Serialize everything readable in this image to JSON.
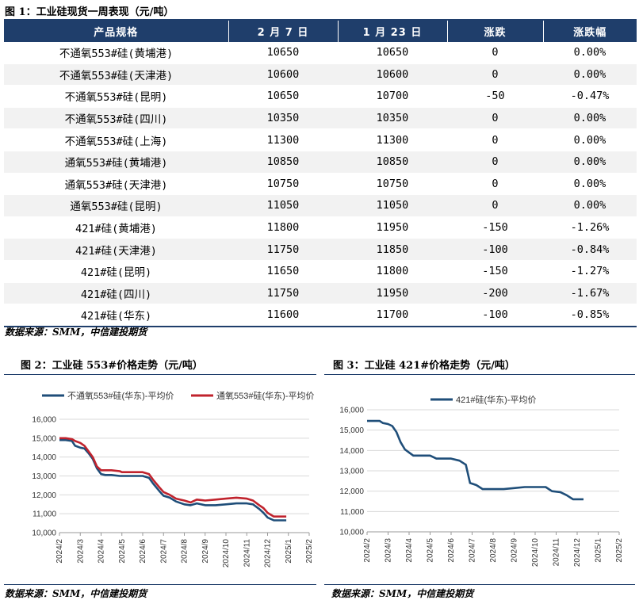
{
  "fig1": {
    "title": "图 1：工业硅现货一周表现（元/吨）",
    "source": "数据来源：SMM，中信建投期货"
  },
  "fig2": {
    "title": "图 2：工业硅 553#价格走势（元/吨）",
    "source": "数据来源：SMM，中信建投期货"
  },
  "fig3": {
    "title": "图 3：工业硅 421#价格走势（元/吨）",
    "source": "数据来源：SMM，中信建投期货"
  },
  "colors": {
    "header_bg": "#1f3e6b",
    "series_blue": "#1f4e79",
    "series_red": "#c0232d"
  },
  "chart_data": [
    {
      "type": "table",
      "title": "图 1：工业硅现货一周表现（元/吨）",
      "columns": [
        "产品规格",
        "2 月 7 日",
        "1 月 23 日",
        "涨跌",
        "涨跌幅"
      ],
      "rows": [
        [
          "不通氧553#硅(黄埔港)",
          "10650",
          "10650",
          "0",
          "0.00%"
        ],
        [
          "不通氧553#硅(天津港)",
          "10600",
          "10600",
          "0",
          "0.00%"
        ],
        [
          "不通氧553#硅(昆明)",
          "10650",
          "10700",
          "-50",
          "-0.47%"
        ],
        [
          "不通氧553#硅(四川)",
          "10350",
          "10350",
          "0",
          "0.00%"
        ],
        [
          "不通氧553#硅(上海)",
          "11300",
          "11300",
          "0",
          "0.00%"
        ],
        [
          "通氧553#硅(黄埔港)",
          "10850",
          "10850",
          "0",
          "0.00%"
        ],
        [
          "通氧553#硅(天津港)",
          "10750",
          "10750",
          "0",
          "0.00%"
        ],
        [
          "通氧553#硅(昆明)",
          "11050",
          "11050",
          "0",
          "0.00%"
        ],
        [
          "421#硅(黄埔港)",
          "11800",
          "11950",
          "-150",
          "-1.26%"
        ],
        [
          "421#硅(天津港)",
          "11750",
          "11850",
          "-100",
          "-0.84%"
        ],
        [
          "421#硅(昆明)",
          "11650",
          "11800",
          "-150",
          "-1.27%"
        ],
        [
          "421#硅(四川)",
          "11750",
          "11950",
          "-200",
          "-1.67%"
        ],
        [
          "421#硅(华东)",
          "11600",
          "11700",
          "-100",
          "-0.85%"
        ]
      ]
    },
    {
      "type": "line",
      "title": "图 2：工业硅 553#价格走势（元/吨）",
      "x_tick_labels": [
        "2024/2",
        "2024/3",
        "2024/4",
        "2024/5",
        "2024/6",
        "2024/7",
        "2024/8",
        "2024/9",
        "2024/10",
        "2024/11",
        "2024/12",
        "2025/1",
        "2025/2"
      ],
      "ylim": [
        10000,
        16000
      ],
      "y_tick_labels": [
        "10,000",
        "11,000",
        "12,000",
        "13,000",
        "14,000",
        "15,000",
        "16,000"
      ],
      "legend_position": "top",
      "series": [
        {
          "name": "不通氧553#硅(华东)-平均价",
          "points": [
            [
              2.0,
              14900
            ],
            [
              2.3,
              14900
            ],
            [
              2.6,
              14850
            ],
            [
              2.75,
              14600
            ],
            [
              3.0,
              14500
            ],
            [
              3.2,
              14450
            ],
            [
              3.4,
              14200
            ],
            [
              3.6,
              13900
            ],
            [
              3.8,
              13400
            ],
            [
              4.0,
              13100
            ],
            [
              4.2,
              13050
            ],
            [
              4.5,
              13050
            ],
            [
              4.9,
              13000
            ],
            [
              5.0,
              13000
            ],
            [
              5.5,
              13000
            ],
            [
              6.0,
              13000
            ],
            [
              6.3,
              12900
            ],
            [
              6.5,
              12600
            ],
            [
              6.8,
              12200
            ],
            [
              7.0,
              11950
            ],
            [
              7.3,
              11850
            ],
            [
              7.6,
              11650
            ],
            [
              8.0,
              11500
            ],
            [
              8.3,
              11450
            ],
            [
              8.6,
              11550
            ],
            [
              9.0,
              11450
            ],
            [
              9.5,
              11450
            ],
            [
              10.0,
              11500
            ],
            [
              10.5,
              11550
            ],
            [
              11.0,
              11550
            ],
            [
              11.3,
              11500
            ],
            [
              11.6,
              11250
            ],
            [
              11.8,
              11050
            ],
            [
              12.0,
              10800
            ],
            [
              12.3,
              10650
            ],
            [
              12.9,
              10650
            ]
          ]
        },
        {
          "name": "通氧553#硅(华东)-平均价",
          "points": [
            [
              2.0,
              15000
            ],
            [
              2.3,
              15000
            ],
            [
              2.6,
              14950
            ],
            [
              2.75,
              14850
            ],
            [
              3.0,
              14750
            ],
            [
              3.2,
              14600
            ],
            [
              3.4,
              14300
            ],
            [
              3.6,
              14000
            ],
            [
              3.8,
              13500
            ],
            [
              4.0,
              13300
            ],
            [
              4.2,
              13300
            ],
            [
              4.5,
              13300
            ],
            [
              4.9,
              13250
            ],
            [
              5.0,
              13200
            ],
            [
              5.5,
              13200
            ],
            [
              6.0,
              13200
            ],
            [
              6.3,
              13100
            ],
            [
              6.5,
              12800
            ],
            [
              6.8,
              12400
            ],
            [
              7.0,
              12150
            ],
            [
              7.3,
              12000
            ],
            [
              7.6,
              11800
            ],
            [
              8.0,
              11700
            ],
            [
              8.3,
              11600
            ],
            [
              8.6,
              11750
            ],
            [
              9.0,
              11700
            ],
            [
              9.5,
              11750
            ],
            [
              10.0,
              11800
            ],
            [
              10.5,
              11850
            ],
            [
              11.0,
              11800
            ],
            [
              11.3,
              11700
            ],
            [
              11.6,
              11450
            ],
            [
              11.8,
              11300
            ],
            [
              12.0,
              11050
            ],
            [
              12.3,
              10850
            ],
            [
              12.9,
              10850
            ]
          ]
        }
      ]
    },
    {
      "type": "line",
      "title": "图 3：工业硅 421#价格走势（元/吨）",
      "x_tick_labels": [
        "2024/2",
        "2024/3",
        "2024/4",
        "2024/5",
        "2024/6",
        "2024/7",
        "2024/8",
        "2024/9",
        "2024/10",
        "2024/11",
        "2024/12",
        "2025/1",
        "2025/2"
      ],
      "ylim": [
        10000,
        16000
      ],
      "y_tick_labels": [
        "10,000",
        "11,000",
        "12,000",
        "13,000",
        "14,000",
        "15,000",
        "16,000"
      ],
      "legend_position": "top",
      "series": [
        {
          "name": "421#硅(华东)-平均价",
          "points": [
            [
              2.0,
              15450
            ],
            [
              2.6,
              15450
            ],
            [
              2.75,
              15350
            ],
            [
              3.0,
              15300
            ],
            [
              3.2,
              15200
            ],
            [
              3.4,
              14900
            ],
            [
              3.6,
              14400
            ],
            [
              3.8,
              14050
            ],
            [
              4.0,
              13900
            ],
            [
              4.2,
              13750
            ],
            [
              4.5,
              13750
            ],
            [
              5.0,
              13750
            ],
            [
              5.3,
              13600
            ],
            [
              5.6,
              13600
            ],
            [
              6.0,
              13600
            ],
            [
              6.4,
              13500
            ],
            [
              6.7,
              13300
            ],
            [
              6.9,
              12400
            ],
            [
              7.2,
              12300
            ],
            [
              7.5,
              12100
            ],
            [
              8.0,
              12100
            ],
            [
              8.5,
              12100
            ],
            [
              9.0,
              12150
            ],
            [
              9.5,
              12200
            ],
            [
              10.0,
              12200
            ],
            [
              10.5,
              12200
            ],
            [
              10.8,
              12000
            ],
            [
              11.2,
              11950
            ],
            [
              11.5,
              11800
            ],
            [
              11.8,
              11600
            ],
            [
              12.3,
              11600
            ]
          ]
        }
      ]
    }
  ]
}
